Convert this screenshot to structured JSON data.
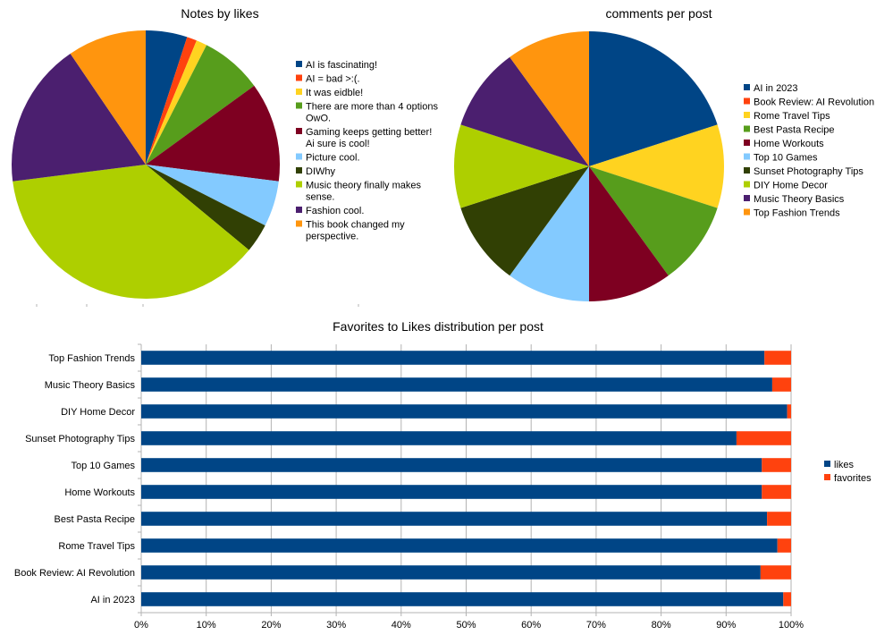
{
  "colors": {
    "palette": [
      "#004586",
      "#ff420e",
      "#ffd320",
      "#579d1c",
      "#7e0021",
      "#83caff",
      "#314004",
      "#aecf00",
      "#4b1f6f",
      "#ff950e"
    ],
    "grid": "#b3b3b3",
    "axis": "#b3b3b3"
  },
  "chart_data": [
    {
      "type": "pie",
      "title": "Notes by likes",
      "legend_position": "right",
      "slices": [
        {
          "label": "AI is fascinating!",
          "value": 5.0
        },
        {
          "label": "AI = bad >:(.",
          "value": 1.2
        },
        {
          "label": "It was eidble!",
          "value": 1.3
        },
        {
          "label": "There are more than 4 options OwO.",
          "value": 7.5
        },
        {
          "label": "Gaming keeps getting better! Ai sure is cool!",
          "value": 12.0
        },
        {
          "label": "Picture cool.",
          "value": 5.5
        },
        {
          "label": "DIWhy",
          "value": 3.5
        },
        {
          "label": "Music theory finally makes sense.",
          "value": 37.0
        },
        {
          "label": "Fashion cool.",
          "value": 17.5
        },
        {
          "label": "This book changed my perspective.",
          "value": 9.5
        }
      ]
    },
    {
      "type": "pie",
      "title": "comments per post",
      "legend_position": "right",
      "slices": [
        {
          "label": "AI in 2023",
          "value": 20
        },
        {
          "label": "Book Review: AI Revolution",
          "value": 0
        },
        {
          "label": "Rome Travel Tips",
          "value": 10
        },
        {
          "label": "Best Pasta Recipe",
          "value": 10
        },
        {
          "label": "Home Workouts",
          "value": 10
        },
        {
          "label": "Top 10 Games",
          "value": 10
        },
        {
          "label": "Sunset Photography Tips",
          "value": 10
        },
        {
          "label": "DIY Home Decor",
          "value": 10
        },
        {
          "label": "Music Theory Basics",
          "value": 10
        },
        {
          "label": "Top Fashion Trends",
          "value": 10
        }
      ]
    },
    {
      "type": "bar",
      "orientation": "horizontal",
      "stacked": "percent",
      "title": "Favorites to Likes distribution per post",
      "legend_position": "right",
      "grid": true,
      "xlim": [
        0,
        100
      ],
      "x_ticks": [
        "0%",
        "10%",
        "20%",
        "30%",
        "40%",
        "50%",
        "60%",
        "70%",
        "80%",
        "90%",
        "100%"
      ],
      "categories": [
        "Top Fashion Trends",
        "Music Theory Basics",
        "DIY Home Decor",
        "Sunset Photography Tips",
        "Top 10 Games",
        "Home Workouts",
        "Best Pasta Recipe",
        "Rome Travel Tips",
        "Book Review: AI Revolution",
        "AI in 2023"
      ],
      "series": [
        {
          "name": "likes",
          "values": [
            95.9,
            97.1,
            99.4,
            91.6,
            95.5,
            95.5,
            96.3,
            97.9,
            95.3,
            98.8
          ]
        },
        {
          "name": "favorites",
          "values": [
            4.1,
            2.9,
            0.6,
            8.4,
            4.5,
            4.5,
            3.7,
            2.1,
            4.7,
            1.2
          ]
        }
      ]
    }
  ]
}
